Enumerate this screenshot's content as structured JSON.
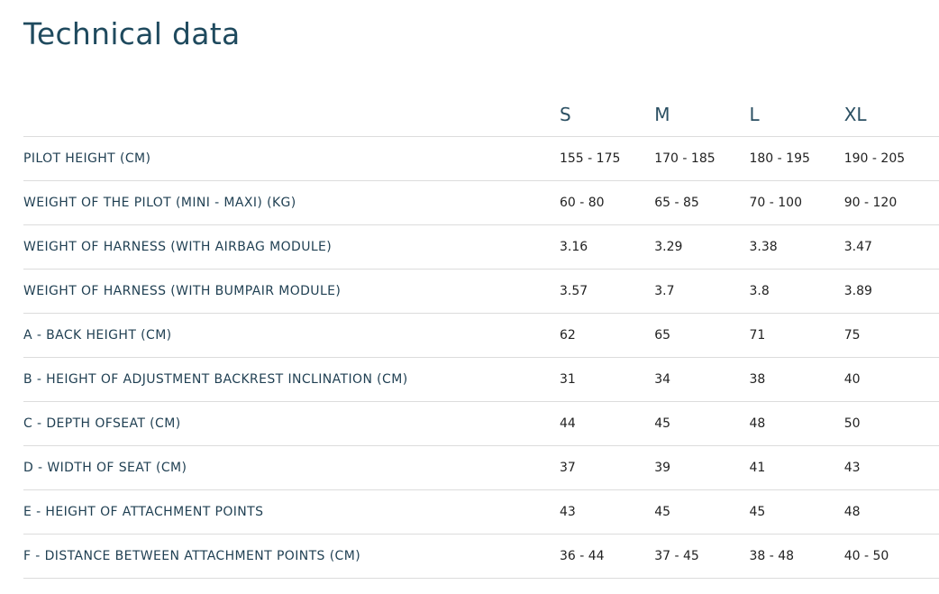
{
  "title": "Technical data",
  "sizes": [
    "S",
    "M",
    "L",
    "XL"
  ],
  "rows": [
    {
      "label": "PILOT HEIGHT (CM)",
      "values": [
        "155 - 175",
        "170 - 185",
        "180 - 195",
        "190 - 205"
      ]
    },
    {
      "label": "WEIGHT OF THE PILOT (MINI - MAXI) (KG)",
      "values": [
        "60 - 80",
        "65 - 85",
        "70 - 100",
        "90 - 120"
      ]
    },
    {
      "label": "WEIGHT OF HARNESS (WITH AIRBAG MODULE)",
      "values": [
        "3.16",
        "3.29",
        "3.38",
        "3.47"
      ]
    },
    {
      "label": "WEIGHT OF HARNESS (WITH BUMPAIR MODULE)",
      "values": [
        "3.57",
        "3.7",
        "3.8",
        "3.89"
      ]
    },
    {
      "label": "A - BACK HEIGHT (CM)",
      "values": [
        "62",
        "65",
        "71",
        "75"
      ]
    },
    {
      "label": "B - HEIGHT OF ADJUSTMENT BACKREST INCLINATION (CM)",
      "values": [
        "31",
        "34",
        "38",
        "40"
      ]
    },
    {
      "label": "C - DEPTH OFSEAT (CM)",
      "values": [
        "44",
        "45",
        "48",
        "50"
      ]
    },
    {
      "label": "D - WIDTH OF SEAT (CM)",
      "values": [
        "37",
        "39",
        "41",
        "43"
      ]
    },
    {
      "label": "E - HEIGHT OF ATTACHMENT POINTS",
      "values": [
        "43",
        "45",
        "45",
        "48"
      ]
    },
    {
      "label": "F - DISTANCE BETWEEN ATTACHMENT POINTS (CM)",
      "values": [
        "36 - 44",
        "37 - 45",
        "38 - 48",
        "40 - 50"
      ]
    }
  ]
}
